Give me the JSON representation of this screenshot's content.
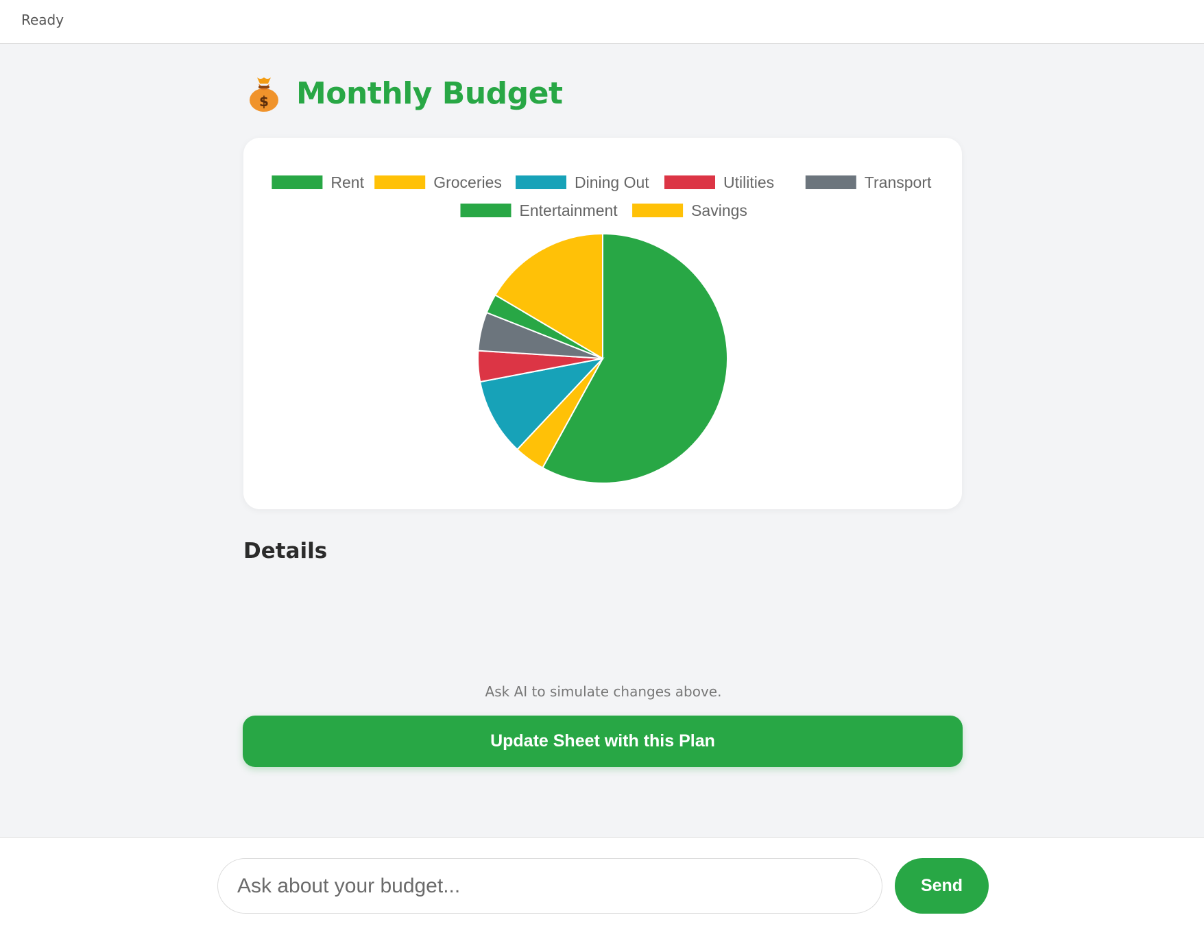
{
  "status": {
    "text": "Ready"
  },
  "header": {
    "icon": "money-bag-icon",
    "title": "Monthly Budget"
  },
  "colors": {
    "accent": "#28a745",
    "rent": "#28a745",
    "groceries": "#ffc107",
    "dining_out": "#17a2b8",
    "utilities": "#dc3545",
    "transport": "#6c757d",
    "entertainment": "#28a745",
    "savings": "#ffc107"
  },
  "chart_data": {
    "type": "pie",
    "legend_position": "top",
    "categories": [
      "Rent",
      "Groceries",
      "Dining Out",
      "Utilities",
      "Transport",
      "Entertainment",
      "Savings"
    ],
    "values": [
      58,
      4,
      10,
      4,
      5,
      2.5,
      16.5
    ],
    "colors": [
      "#28a745",
      "#ffc107",
      "#17a2b8",
      "#dc3545",
      "#6c757d",
      "#28a745",
      "#ffc107"
    ]
  },
  "details": {
    "heading": "Details"
  },
  "hint": {
    "text": "Ask AI to simulate changes above."
  },
  "actions": {
    "update_label": "Update Sheet with this Plan"
  },
  "chat": {
    "placeholder": "Ask about your budget...",
    "send_label": "Send"
  }
}
